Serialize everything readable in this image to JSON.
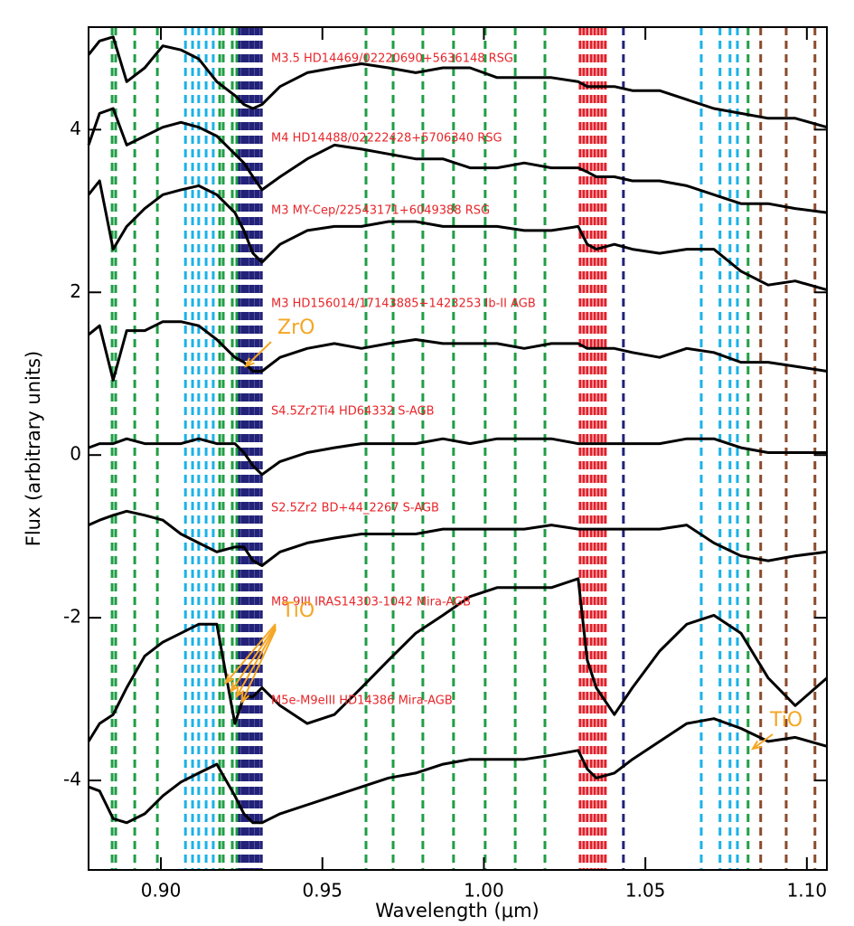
{
  "chart_data": {
    "type": "line",
    "xlabel": "Wavelength (μm)",
    "ylabel": "Flux (arbitrary units)",
    "xlim": [
      0.8776,
      1.1062
    ],
    "ylim": [
      -5.1,
      5.26
    ],
    "xticks": [
      {
        "value": 0.9,
        "label": "0.90"
      },
      {
        "value": 0.95,
        "label": "0.95"
      },
      {
        "value": 1.0,
        "label": "1.00"
      },
      {
        "value": 1.05,
        "label": "1.05"
      },
      {
        "value": 1.1,
        "label": "1.10"
      }
    ],
    "yticks": [
      -4,
      -2,
      0,
      2,
      4
    ],
    "x": [
      0.8776,
      0.881,
      0.8852,
      0.8894,
      0.895,
      0.9006,
      0.9062,
      0.9117,
      0.9173,
      0.9229,
      0.9257,
      0.9285,
      0.9313,
      0.9369,
      0.9453,
      0.9537,
      0.9621,
      0.9705,
      0.9789,
      0.9873,
      0.9957,
      1.0041,
      1.0125,
      1.0209,
      1.0292,
      1.032,
      1.0348,
      1.0404,
      1.046,
      1.0544,
      1.0628,
      1.0712,
      1.0796,
      1.088,
      1.0964,
      1.1062
    ],
    "series": [
      {
        "name": "M3.5 HD14469/02220690+5636148 RSG",
        "color": "#000000",
        "values": [
          4.92,
          5.09,
          5.14,
          4.59,
          4.76,
          5.03,
          4.98,
          4.87,
          4.59,
          4.42,
          4.31,
          4.26,
          4.31,
          4.53,
          4.7,
          4.76,
          4.81,
          4.76,
          4.7,
          4.76,
          4.76,
          4.64,
          4.64,
          4.64,
          4.59,
          4.53,
          4.53,
          4.53,
          4.48,
          4.48,
          4.37,
          4.26,
          4.2,
          4.14,
          4.14,
          4.03
        ]
      },
      {
        "name": "M4 HD14488/02222428+5706340 RSG",
        "color": "#000000",
        "values": [
          3.81,
          4.2,
          4.26,
          3.81,
          3.92,
          4.03,
          4.09,
          4.03,
          3.92,
          3.7,
          3.59,
          3.42,
          3.26,
          3.42,
          3.64,
          3.81,
          3.76,
          3.7,
          3.64,
          3.64,
          3.53,
          3.53,
          3.59,
          3.53,
          3.53,
          3.48,
          3.42,
          3.42,
          3.37,
          3.37,
          3.31,
          3.2,
          3.09,
          3.09,
          3.03,
          2.98
        ]
      },
      {
        "name": "M3 MY-Cep/22543171+6049388 RSG",
        "color": "#000000",
        "values": [
          3.2,
          3.37,
          2.53,
          2.81,
          3.03,
          3.2,
          3.26,
          3.31,
          3.2,
          2.98,
          2.76,
          2.48,
          2.37,
          2.59,
          2.76,
          2.81,
          2.81,
          2.87,
          2.87,
          2.81,
          2.81,
          2.81,
          2.76,
          2.76,
          2.81,
          2.59,
          2.53,
          2.59,
          2.53,
          2.48,
          2.53,
          2.53,
          2.26,
          2.09,
          2.14,
          2.03
        ]
      },
      {
        "name": "M3 HD156014/17143885+1423253 Ib-II AGB",
        "color": "#000000",
        "values": [
          1.48,
          1.59,
          0.92,
          1.53,
          1.53,
          1.64,
          1.64,
          1.59,
          1.42,
          1.2,
          1.14,
          1.03,
          1.03,
          1.2,
          1.31,
          1.37,
          1.31,
          1.37,
          1.42,
          1.37,
          1.37,
          1.37,
          1.31,
          1.37,
          1.37,
          1.31,
          1.31,
          1.31,
          1.26,
          1.2,
          1.31,
          1.26,
          1.14,
          1.14,
          1.09,
          1.03
        ]
      },
      {
        "name": "S4.5Zr2Ti4 HD64332 S-AGB",
        "color": "#000000",
        "values": [
          0.09,
          0.14,
          0.14,
          0.2,
          0.14,
          0.14,
          0.14,
          0.2,
          0.14,
          0.14,
          0.03,
          -0.13,
          -0.24,
          -0.08,
          0.03,
          0.09,
          0.14,
          0.14,
          0.14,
          0.2,
          0.14,
          0.2,
          0.2,
          0.2,
          0.14,
          0.14,
          0.14,
          0.14,
          0.14,
          0.14,
          0.2,
          0.2,
          0.09,
          0.03,
          0.03,
          0.03
        ]
      },
      {
        "name": "S2.5Zr2 BD+44_2267 S-AGB",
        "color": "#000000",
        "values": [
          -0.86,
          -0.8,
          -0.74,
          -0.69,
          -0.74,
          -0.8,
          -0.97,
          -1.08,
          -1.19,
          -1.13,
          -1.13,
          -1.3,
          -1.36,
          -1.19,
          -1.08,
          -1.02,
          -0.97,
          -0.97,
          -0.97,
          -0.91,
          -0.91,
          -0.91,
          -0.91,
          -0.86,
          -0.91,
          -0.91,
          -0.91,
          -0.91,
          -0.91,
          -0.91,
          -0.86,
          -1.08,
          -1.24,
          -1.3,
          -1.24,
          -1.19
        ]
      },
      {
        "name": "M8-9III IRAS14303-1042 Mira-AGB",
        "color": "#000000",
        "values": [
          -3.52,
          -3.3,
          -3.19,
          -2.86,
          -2.47,
          -2.3,
          -2.19,
          -2.08,
          -2.08,
          -3.3,
          -2.97,
          -2.97,
          -2.86,
          -3.08,
          -3.3,
          -3.19,
          -2.86,
          -2.52,
          -2.19,
          -1.97,
          -1.74,
          -1.63,
          -1.63,
          -1.63,
          -1.52,
          -2.52,
          -2.86,
          -3.19,
          -2.86,
          -2.41,
          -2.08,
          -1.97,
          -2.19,
          -2.74,
          -3.08,
          -2.74
        ]
      },
      {
        "name": "M5e-M9eIII HD14386 Mira-AGB",
        "color": "#000000",
        "values": [
          -4.08,
          -4.13,
          -4.47,
          -4.52,
          -4.41,
          -4.19,
          -4.02,
          -3.91,
          -3.8,
          -4.19,
          -4.41,
          -4.52,
          -4.52,
          -4.41,
          -4.3,
          -4.19,
          -4.08,
          -3.97,
          -3.91,
          -3.8,
          -3.74,
          -3.74,
          -3.74,
          -3.69,
          -3.63,
          -3.86,
          -3.97,
          -3.91,
          -3.74,
          -3.52,
          -3.3,
          -3.24,
          -3.36,
          -3.52,
          -3.47,
          -3.58
        ]
      }
    ],
    "label_color": "#e8262a",
    "vline_groups": [
      {
        "color": "#1f9e45",
        "x": [
          0.8849,
          0.886,
          0.8919,
          0.8989,
          0.9182,
          0.9193,
          0.9221,
          0.9235,
          0.9635,
          0.9719,
          0.9811,
          0.9906,
          1.0004,
          1.0097,
          1.0189,
          1.0818
        ]
      },
      {
        "color": "#1ab2e8",
        "x": [
          0.9076,
          0.9098,
          0.9117,
          0.914,
          0.9162,
          1.0673,
          1.0731,
          1.0762,
          1.0785
        ]
      },
      {
        "color": "#22227a",
        "x": [
          0.9243,
          0.9252,
          0.926,
          0.9268,
          0.9277,
          0.9285,
          0.9294,
          0.9302,
          0.9311,
          1.0432
        ]
      },
      {
        "color": "#e0202a",
        "x": [
          1.0298,
          1.0309,
          1.032,
          1.0332,
          1.0343,
          1.0354,
          1.0365,
          1.0376
        ]
      },
      {
        "color": "#8b4a2b",
        "x": [
          1.0857,
          1.0936,
          1.1025
        ]
      }
    ],
    "annotation_color": "#f5a623",
    "annotations": [
      {
        "text": "ZrO"
      },
      {
        "text": "TiO"
      },
      {
        "text": "TiO"
      }
    ]
  }
}
